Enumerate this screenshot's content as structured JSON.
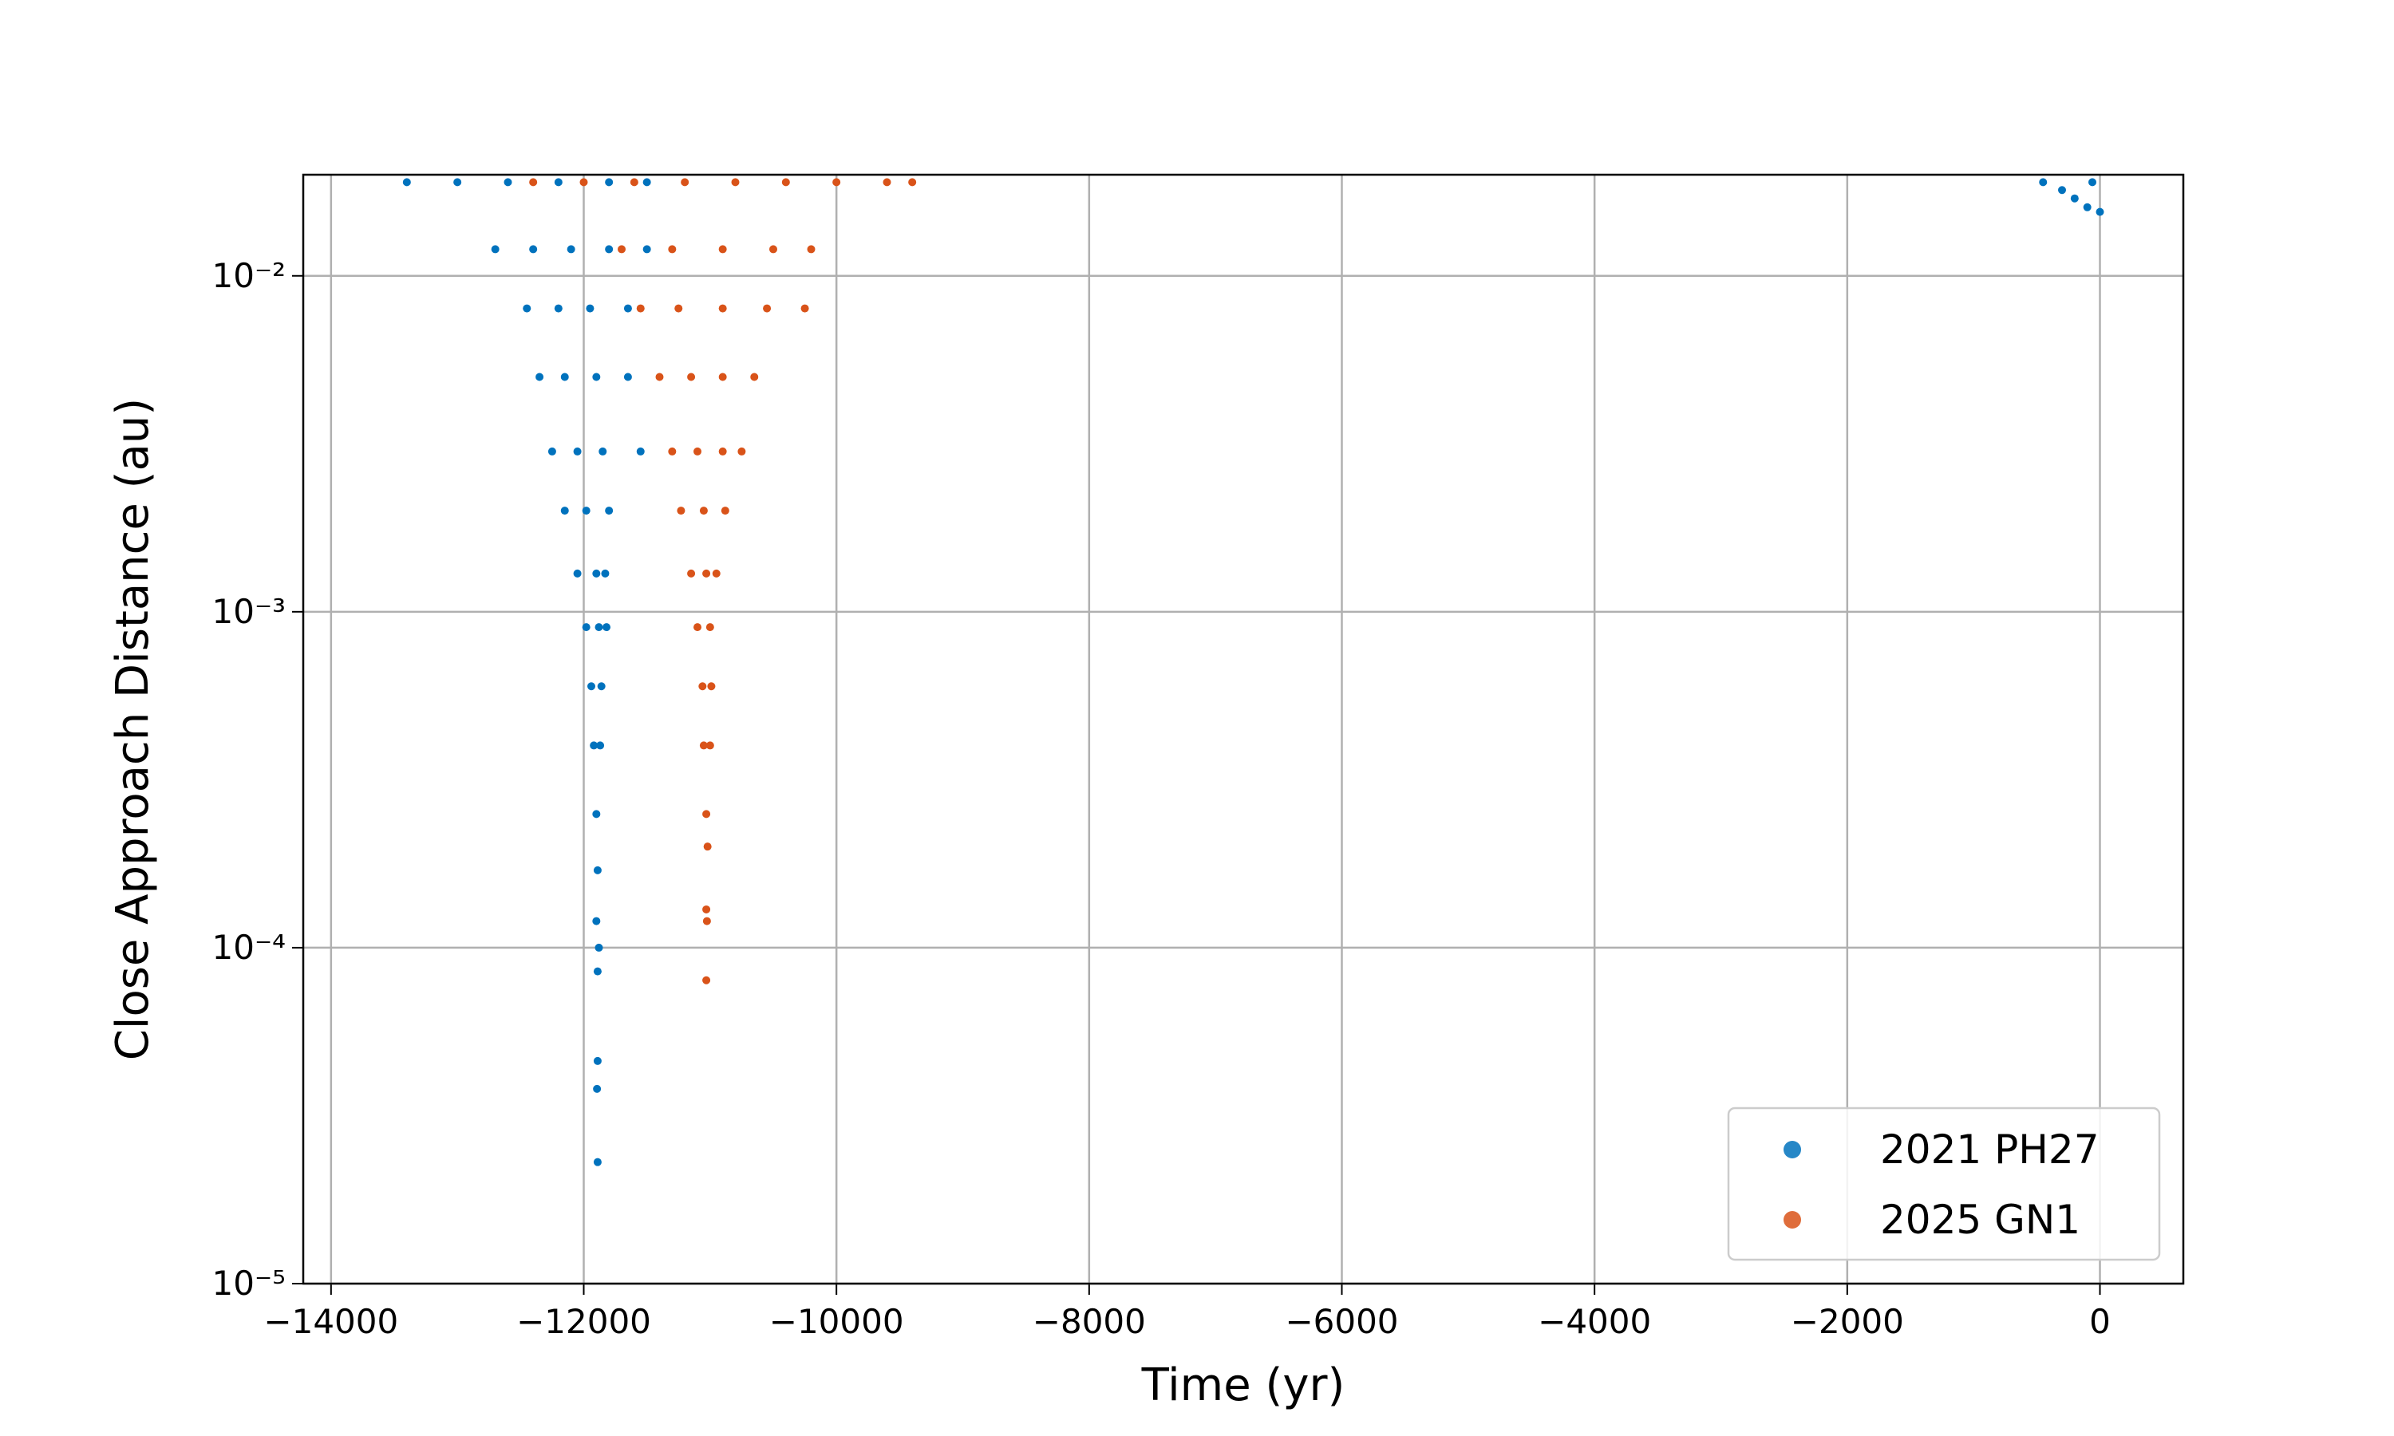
{
  "chart_data": {
    "type": "scatter",
    "xlabel": "Time (yr)",
    "ylabel": "Close Approach Distance (au)",
    "xlim": [
      -14220,
      660
    ],
    "ylim": [
      1e-05,
      0.02
    ],
    "yscale": "log",
    "grid": true,
    "legend": "lower right",
    "xticks": [
      {
        "value": -14000,
        "label": "−14000"
      },
      {
        "value": -12000,
        "label": "−12000"
      },
      {
        "value": -10000,
        "label": "−10000"
      },
      {
        "value": -8000,
        "label": "−8000"
      },
      {
        "value": -6000,
        "label": "−6000"
      },
      {
        "value": -4000,
        "label": "−4000"
      },
      {
        "value": -2000,
        "label": "−2000"
      },
      0
    ],
    "yticks": [
      {
        "value": 1e-05,
        "label": "10⁻⁵"
      },
      {
        "value": 0.0001,
        "label": "10⁻⁴"
      },
      {
        "value": 0.001,
        "label": "10⁻³"
      },
      {
        "value": 0.01,
        "label": "10⁻²"
      }
    ],
    "series": [
      {
        "name": "2021 PH27",
        "color": "#0072bd",
        "x": [
          -13400,
          -13000,
          -12600,
          -12200,
          -11800,
          -11500,
          -12700,
          -12400,
          -12100,
          -11800,
          -11500,
          -12450,
          -12200,
          -11950,
          -11650,
          -12350,
          -12150,
          -11900,
          -11650,
          -12250,
          -12050,
          -11850,
          -11550,
          -12150,
          -11980,
          -11800,
          -12050,
          -11900,
          -11830,
          -11980,
          -11880,
          -11820,
          -11940,
          -11860,
          -11920,
          -11870,
          -11900,
          -11890,
          -11900,
          -11880,
          -11890,
          -11890,
          -11895,
          -11890,
          -450,
          -300,
          -200,
          -100,
          0,
          -60
        ],
        "values": [
          0.019,
          0.019,
          0.019,
          0.019,
          0.019,
          0.019,
          0.012,
          0.012,
          0.012,
          0.012,
          0.012,
          0.008,
          0.008,
          0.008,
          0.008,
          0.005,
          0.005,
          0.005,
          0.005,
          0.003,
          0.003,
          0.003,
          0.003,
          0.002,
          0.002,
          0.002,
          0.0013,
          0.0013,
          0.0013,
          0.0009,
          0.0009,
          0.0009,
          0.0006,
          0.0006,
          0.0004,
          0.0004,
          0.00025,
          0.00017,
          0.00012,
          0.0001,
          8.5e-05,
          4.6e-05,
          3.8e-05,
          2.3e-05,
          0.019,
          0.018,
          0.017,
          0.016,
          0.0155,
          0.019
        ]
      },
      {
        "name": "2025 GN1",
        "color": "#d95319",
        "x": [
          -12400,
          -12000,
          -11600,
          -11200,
          -10800,
          -10400,
          -10000,
          -9600,
          -9400,
          -11700,
          -11300,
          -10900,
          -10500,
          -10200,
          -11550,
          -11250,
          -10900,
          -10550,
          -10250,
          -11400,
          -11150,
          -10900,
          -10650,
          -11300,
          -11100,
          -10900,
          -10750,
          -11230,
          -11050,
          -10880,
          -11150,
          -11030,
          -10950,
          -11100,
          -11000,
          -11060,
          -10990,
          -11050,
          -11000,
          -11030,
          -11020,
          -11030,
          -11025,
          -11030
        ],
        "values": [
          0.019,
          0.019,
          0.019,
          0.019,
          0.019,
          0.019,
          0.019,
          0.019,
          0.019,
          0.012,
          0.012,
          0.012,
          0.012,
          0.012,
          0.008,
          0.008,
          0.008,
          0.008,
          0.008,
          0.005,
          0.005,
          0.005,
          0.005,
          0.003,
          0.003,
          0.003,
          0.003,
          0.002,
          0.002,
          0.002,
          0.0013,
          0.0013,
          0.0013,
          0.0009,
          0.0009,
          0.0006,
          0.0006,
          0.0004,
          0.0004,
          0.00025,
          0.0002,
          0.00013,
          0.00012,
          8e-05
        ]
      }
    ]
  }
}
